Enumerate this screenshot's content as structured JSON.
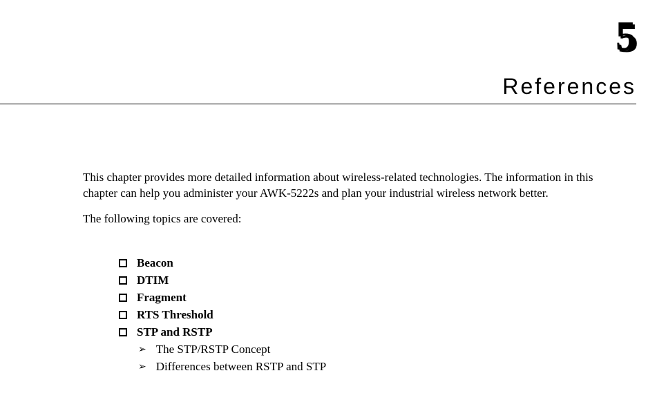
{
  "chapter": {
    "number": "5",
    "title": "References"
  },
  "intro": {
    "p1": "This chapter provides more detailed information about wireless-related technologies. The information in this chapter can help you administer your AWK-5222s and plan your industrial wireless network better.",
    "p2": "The following topics are covered:"
  },
  "topics": [
    {
      "label": "Beacon"
    },
    {
      "label": "DTIM"
    },
    {
      "label": "Fragment"
    },
    {
      "label": "RTS Threshold"
    },
    {
      "label": "STP and RSTP",
      "children": [
        {
          "label": "The STP/RSTP Concept"
        },
        {
          "label": "Differences between RSTP and STP"
        }
      ]
    }
  ],
  "style": {
    "page_bg": "#ffffff",
    "text_color": "#000000",
    "chapter_number_fontsize": 60,
    "chapter_title_fontsize": 32,
    "body_fontsize": 17
  }
}
